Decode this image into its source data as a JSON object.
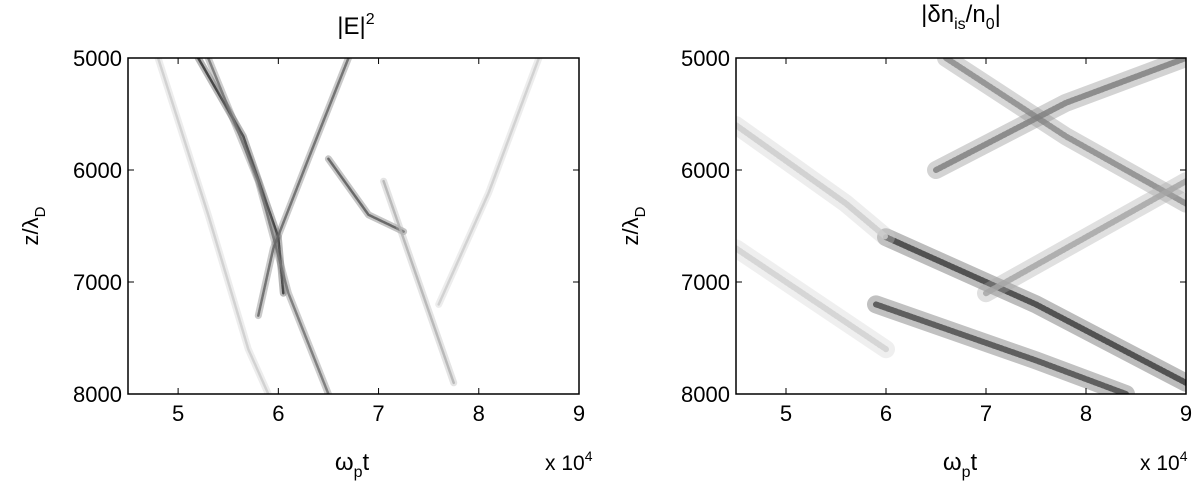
{
  "chart_data": [
    {
      "type": "heatmap",
      "title": "|E|^2",
      "title_main": "|E|",
      "title_sup": "2",
      "xlabel": "ω_p t",
      "xlabel_main": "ω",
      "xlabel_sub": "p",
      "xlabel_tail": "t",
      "ylabel": "z/λ_D",
      "ylabel_main": "z/λ",
      "ylabel_sub": "D",
      "x_multiplier": "x 10^4",
      "x_multiplier_main": "x 10",
      "x_multiplier_sup": "4",
      "xlim": [
        4.5,
        9
      ],
      "ylim": [
        8000,
        5000
      ],
      "y_reversed": true,
      "x_ticks": [
        5,
        6,
        7,
        8,
        9
      ],
      "y_ticks": [
        5000,
        6000,
        7000,
        8000
      ],
      "colormap": "grayscale inverted (white = low, black = high)",
      "features": [
        {
          "description": "dark streak",
          "points": [
            [
              5.2,
              5000
            ],
            [
              5.65,
              5700
            ],
            [
              6.0,
              6600
            ],
            [
              6.05,
              7100
            ]
          ],
          "intensity": 0.8
        },
        {
          "description": "dark streak",
          "points": [
            [
              5.3,
              5000
            ],
            [
              5.8,
              6100
            ],
            [
              6.1,
              7100
            ],
            [
              6.5,
              8000
            ]
          ],
          "intensity": 0.55
        },
        {
          "description": "dark streak",
          "points": [
            [
              6.7,
              5000
            ],
            [
              6.3,
              5900
            ],
            [
              5.95,
              6700
            ],
            [
              5.8,
              7300
            ]
          ],
          "intensity": 0.6
        },
        {
          "description": "dark streak",
          "points": [
            [
              6.5,
              5900
            ],
            [
              6.9,
              6400
            ],
            [
              7.25,
              6550
            ]
          ],
          "intensity": 0.65
        },
        {
          "description": "faint streak",
          "points": [
            [
              7.05,
              6100
            ],
            [
              7.4,
              7000
            ],
            [
              7.75,
              7900
            ]
          ],
          "intensity": 0.3
        },
        {
          "description": "faint streak",
          "points": [
            [
              8.6,
              5000
            ],
            [
              8.1,
              6200
            ],
            [
              7.6,
              7200
            ]
          ],
          "intensity": 0.2
        },
        {
          "description": "faint streak",
          "points": [
            [
              4.8,
              5000
            ],
            [
              5.3,
              6400
            ],
            [
              5.7,
              7600
            ],
            [
              5.9,
              8000
            ]
          ],
          "intensity": 0.2
        }
      ]
    },
    {
      "type": "heatmap",
      "title": "|δn_is/n_0|",
      "title_main": "|δn",
      "title_sub1": "is",
      "title_mid": "/n",
      "title_sub2": "0",
      "title_tail": "|",
      "xlabel": "ω_p t",
      "xlabel_main": "ω",
      "xlabel_sub": "p",
      "xlabel_tail": "t",
      "ylabel": "z/λ_D",
      "ylabel_main": "z/λ",
      "ylabel_sub": "D",
      "x_multiplier": "x 10^4",
      "x_multiplier_main": "x 10",
      "x_multiplier_sup": "4",
      "xlim": [
        4.5,
        9
      ],
      "ylim": [
        8000,
        5000
      ],
      "y_reversed": true,
      "x_ticks": [
        5,
        6,
        7,
        8,
        9
      ],
      "y_ticks": [
        5000,
        6000,
        7000,
        8000
      ],
      "colormap": "grayscale inverted (white = low, black = high)",
      "features": [
        {
          "description": "dark diagonal band",
          "points": [
            [
              6.0,
              6600
            ],
            [
              7.5,
              7200
            ],
            [
              9.0,
              7900
            ]
          ],
          "intensity": 0.75
        },
        {
          "description": "dark diagonal band",
          "points": [
            [
              5.9,
              7200
            ],
            [
              7.5,
              7700
            ],
            [
              8.4,
              8000
            ]
          ],
          "intensity": 0.7
        },
        {
          "description": "mid diagonal band",
          "points": [
            [
              6.6,
              5000
            ],
            [
              7.8,
              5700
            ],
            [
              9.0,
              6300
            ]
          ],
          "intensity": 0.45
        },
        {
          "description": "mid crossing band",
          "points": [
            [
              6.5,
              6000
            ],
            [
              7.8,
              5400
            ],
            [
              9.0,
              5000
            ]
          ],
          "intensity": 0.5
        },
        {
          "description": "mid crossing band",
          "points": [
            [
              7.0,
              7100
            ],
            [
              8.2,
              6500
            ],
            [
              9.0,
              6100
            ]
          ],
          "intensity": 0.35
        },
        {
          "description": "faint diagonal band",
          "points": [
            [
              4.5,
              5600
            ],
            [
              5.6,
              6300
            ],
            [
              6.0,
              6600
            ]
          ],
          "intensity": 0.2
        },
        {
          "description": "faint diagonal band",
          "points": [
            [
              4.5,
              6700
            ],
            [
              5.5,
              7300
            ],
            [
              6.0,
              7600
            ]
          ],
          "intensity": 0.18
        }
      ]
    }
  ]
}
